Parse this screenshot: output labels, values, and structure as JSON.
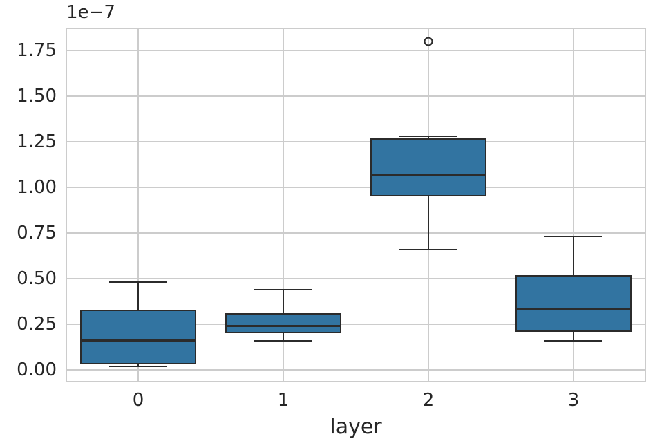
{
  "chart_data": {
    "type": "boxplot",
    "title": "",
    "xlabel": "layer",
    "ylabel": "",
    "offset_text": "1e−7",
    "value_scale": "1e-7",
    "categories": [
      "0",
      "1",
      "2",
      "3"
    ],
    "y_ticks": [
      {
        "value": 0.0,
        "label": "0.00"
      },
      {
        "value": 0.25,
        "label": "0.25"
      },
      {
        "value": 0.5,
        "label": "0.50"
      },
      {
        "value": 0.75,
        "label": "0.75"
      },
      {
        "value": 1.0,
        "label": "1.00"
      },
      {
        "value": 1.25,
        "label": "1.25"
      },
      {
        "value": 1.5,
        "label": "1.50"
      },
      {
        "value": 1.75,
        "label": "1.75"
      }
    ],
    "ylim": [
      -0.068,
      1.875
    ],
    "xlim": [
      -0.5,
      3.5
    ],
    "grid": true,
    "legend": false,
    "boxes": [
      {
        "category": "0",
        "whisker_low": 0.02,
        "q1": 0.03,
        "median": 0.16,
        "q3": 0.33,
        "whisker_high": 0.48,
        "outliers": []
      },
      {
        "category": "1",
        "whisker_low": 0.16,
        "q1": 0.2,
        "median": 0.24,
        "q3": 0.31,
        "whisker_high": 0.44,
        "outliers": []
      },
      {
        "category": "2",
        "whisker_low": 0.66,
        "q1": 0.95,
        "median": 1.07,
        "q3": 1.27,
        "whisker_high": 1.28,
        "outliers": [
          1.8
        ]
      },
      {
        "category": "3",
        "whisker_low": 0.16,
        "q1": 0.21,
        "median": 0.33,
        "q3": 0.52,
        "whisker_high": 0.73,
        "outliers": []
      }
    ],
    "colors": {
      "box_fill": "#3274a1",
      "box_edge": "#2b2b2b",
      "grid": "#cccccc",
      "spine": "#cccccc",
      "text": "#262626",
      "background": "#ffffff"
    }
  }
}
